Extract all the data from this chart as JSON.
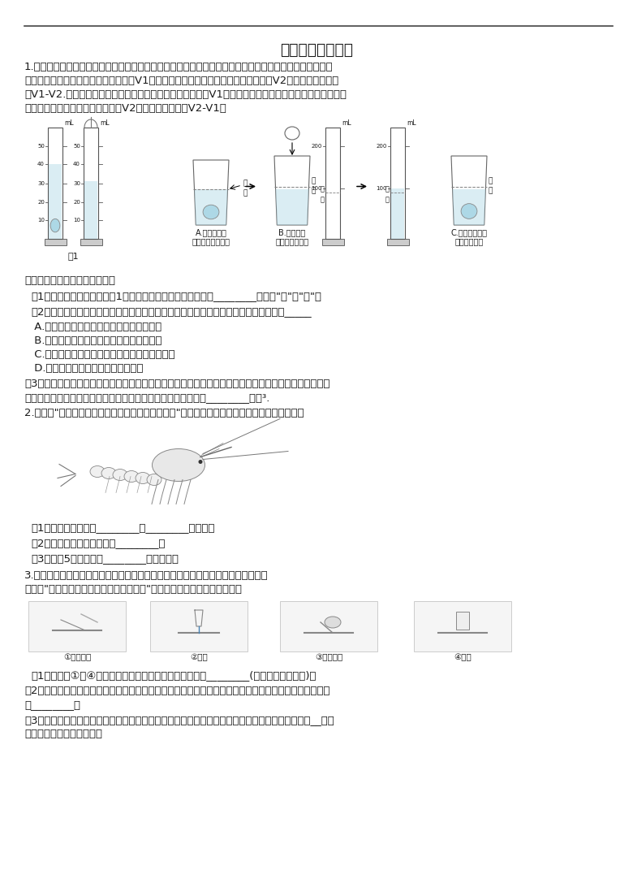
{
  "background_color": "#ffffff",
  "text_color": "#1a1a1a",
  "title": "实验探究题（三）",
  "q1_line1": "1.甲、乙两同学分别用量筒测量一个小石块的体积。甲同学的做法是先将石块置于量筒中，同时往量筒中注",
  "q1_line2": "入水，使水全部浸没石块记下水的体积V1，然后取出石块，记下取出石块后水的体积V2，计算石块的体积",
  "q1_line3": "为V1-V2.乙同学是先在量筒里注入适量的水，记下水的体积V1，然后轻轻放入石块，使量筒里的水完全浸",
  "q1_line4": "没石块，记下此时水及石块的体积V2计算石块的体积为V2-V1。",
  "fig1_label": "图1",
  "caption_A1": "A.加水到标志",
  "caption_A2": "（矿石浸没水中）",
  "caption_B1": "B.取出矿石",
  "caption_B2": "（准备补充水）",
  "caption_C1": "C.将量筒中水倒",
  "caption_C2": "入杯中至标记",
  "biao_ji": "标\n记",
  "ml_label": "mL",
  "compare_intro": "比较这两种方法回答下列问题：",
  "q1_q1": "（1）为了使实验结果（如图1所示）更准确你将选择哪种方法________。（填\"甲\"或\"乙\"）",
  "q1_q2": "（2）实验后两同学对测量结果进行了讨论，以下操作属于导致乙同学测量结果偏小的是_____",
  "q1_A": " A.注入一定量水后俯视读数，其余读数正确",
  "q1_B": " B.待小石块浸没后仰视读数；其余读数正确",
  "q1_C": " C.在浸入小石块时不慎有水滴溅出，读数均正确",
  "q1_D": " D.捆绑小石块的绳太粗，读数均正确",
  "q1_q3l1": "（3）小明在实验室里测量一块形状不规则、体积较大的矿石的体积，因矿石体积较大，放不进量筒，因此",
  "q1_q3l2": "他利用一只烧杯，如下图所示方法进行测量，那么矿石的体积是________厘米³.",
  "q2_intro": "2.在做了\"观察虾的形态结构及其对水生环境的适应\"实验后，小科完成了下列有关河虾的问题：",
  "q2_q1": "（1）河虾的身体分为________和________两部分；",
  "q2_q2": "（2）虾身体有外壳，功能是________；",
  "q2_q3": "（3）虾有5对游泳足和________对步行足。",
  "q3_intro1": "3.熟练地使用显微镜是学习科学的基本技能之一，制作装片是显微观察的重要手段。",
  "q3_intro2": "如图是\"制作洋葱鳞片叶表皮细胞临时装片\"实验的操作步骤，请据图回答：",
  "step1": "①盖盖玻片",
  "step2": "②染色",
  "step3": "③放置表皮",
  "step4": "④准备",
  "q3_q1": "（1）将图中①～④实验步骤按正确的操作顺序进行排序：________(用序号和箭头表示)。",
  "q3_q2l1": "（2）小明用低倍镜观察人体口腔上皮细胞临时装片时，发现物像较为模糊，此时他应该调节显微镜结构中",
  "q3_q2l2": "的________。",
  "q3_q3l1": "（3）正确地盖盖玻片是成功制作临时装片的关键。如图所示制作临时装片时最不容易出现气泡的是__（箭",
  "q3_q3l2": "头代表盖盖玻片的方向）。"
}
